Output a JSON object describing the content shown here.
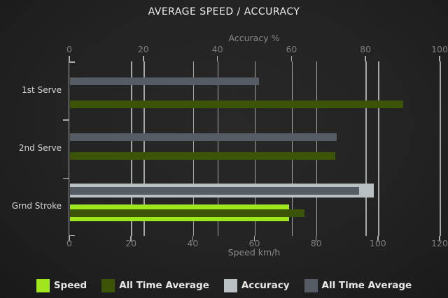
{
  "title": "AVERAGE SPEED / ACCURACY",
  "chart_data": {
    "type": "bar",
    "orientation": "horizontal",
    "title": "AVERAGE SPEED / ACCURACY",
    "categories": [
      "1st Serve",
      "2nd Serve",
      "Grnd Stroke"
    ],
    "series": [
      {
        "name": "Speed",
        "axis": "speed",
        "color": "#a0e61c",
        "values": [
          null,
          null,
          71
        ]
      },
      {
        "name": "All Time Average",
        "axis": "speed",
        "color": "#3b5405",
        "values": [
          108,
          86,
          76
        ]
      },
      {
        "name": "Accuracy",
        "axis": "accuracy",
        "color": "#b9c0c4",
        "values": [
          null,
          null,
          82
        ]
      },
      {
        "name": "All Time Average",
        "axis": "accuracy",
        "color": "#555c64",
        "values": [
          51,
          72,
          78
        ]
      }
    ],
    "axes": {
      "top": {
        "label": "Accuracy %",
        "min": 0,
        "max": 100,
        "step": 20
      },
      "bottom": {
        "label": "Speed km/h",
        "min": 0,
        "max": 120,
        "step": 20
      }
    },
    "grid": true,
    "legend_position": "bottom"
  },
  "legend": [
    {
      "label": "Speed",
      "color": "#a0e61c"
    },
    {
      "label": "All Time Average",
      "color": "#3b5405"
    },
    {
      "label": "Accuracy",
      "color": "#b9c0c4"
    },
    {
      "label": "All Time Average",
      "color": "#555c64"
    }
  ],
  "colors": {
    "background": "#222222",
    "gridline": "#a4a8a8",
    "tick_label": "#7d7d7d",
    "axis_title": "#8a8a8a",
    "category_label": "#d6d6d6",
    "title_text": "#ededed",
    "legend_text": "#e8e8e8"
  }
}
